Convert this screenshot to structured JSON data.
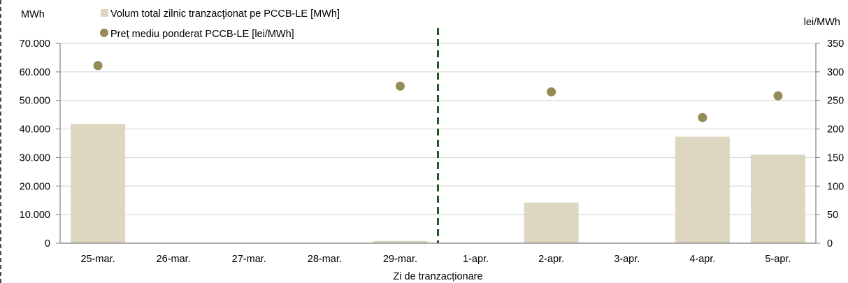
{
  "chart_data": {
    "type": "bar",
    "categories": [
      "25-mar.",
      "26-mar.",
      "27-mar.",
      "28-mar.",
      "29-mar.",
      "1-apr.",
      "2-apr.",
      "3-apr.",
      "4-apr.",
      "5-apr."
    ],
    "series": [
      {
        "name": "Volum total zilnic tranzacţionat pe PCCB-LE [MWh]",
        "axis": "left",
        "type": "bar",
        "values": [
          41800,
          0,
          0,
          0,
          800,
          0,
          14200,
          0,
          37300,
          31000
        ]
      },
      {
        "name": "Preț mediu ponderat PCCB-LE [lei/MWh]",
        "axis": "right",
        "type": "scatter",
        "values": [
          311,
          null,
          null,
          null,
          275,
          null,
          265,
          null,
          220,
          258
        ]
      }
    ],
    "xlabel": "Zi de tranzacționare",
    "ylabel_left": "MWh",
    "ylabel_right": "lei/MWh",
    "ylim_left": [
      0,
      70000
    ],
    "ylim_right": [
      0,
      350
    ],
    "yticks_left": [
      "0",
      "10.000",
      "20.000",
      "30.000",
      "40.000",
      "50.000",
      "60.000",
      "70.000"
    ],
    "yticks_right": [
      "0",
      "50",
      "100",
      "150",
      "200",
      "250",
      "300",
      "350"
    ],
    "grid": true,
    "legend_position": "top-left",
    "divider_after_category": "29-mar.",
    "colors": {
      "bar": "#ddd7c2",
      "dot": "#968a55",
      "divider": "#1f5a1f",
      "grid": "#d9d9d9",
      "axis": "#808080"
    }
  }
}
